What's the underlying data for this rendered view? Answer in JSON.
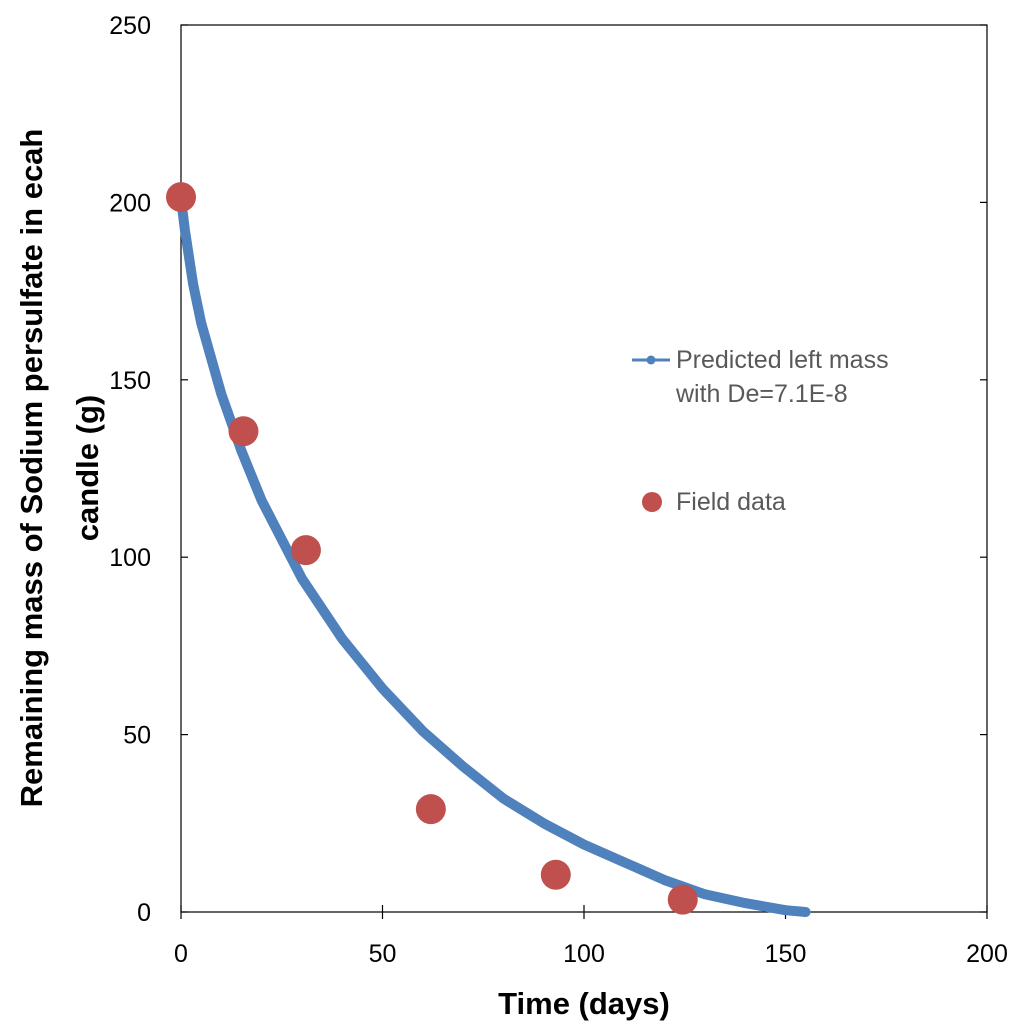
{
  "chart_data": {
    "type": "scatter",
    "xlabel": "Time (days)",
    "ylabel_lines": [
      "Remaining mass of Sodium persulfate in ecah",
      "candle (g)"
    ],
    "xlim": [
      0,
      200
    ],
    "ylim": [
      0,
      250
    ],
    "x_ticks": [
      0,
      50,
      100,
      150,
      200
    ],
    "y_ticks": [
      0,
      50,
      100,
      150,
      200,
      250
    ],
    "grid": false,
    "legend_position": "right",
    "series": [
      {
        "name_lines": [
          "Predicted left mass",
          "with De=7.1E-8"
        ],
        "kind": "line",
        "color": "#4F81BD",
        "x": [
          0,
          1,
          3,
          5,
          10,
          15,
          20,
          30,
          40,
          50,
          60,
          70,
          80,
          90,
          100,
          110,
          120,
          130,
          140,
          150,
          155
        ],
        "y": [
          201,
          192,
          177,
          166,
          146,
          130,
          116,
          94,
          77,
          63,
          51,
          41,
          32,
          25,
          19,
          14,
          9,
          5,
          2.5,
          0.5,
          0
        ]
      },
      {
        "name_lines": [
          "Field data"
        ],
        "kind": "scatter",
        "color": "#C0504D",
        "x": [
          0,
          15.5,
          31,
          62,
          93,
          124.5
        ],
        "y": [
          201.5,
          135.5,
          102,
          29,
          10.5,
          3.5
        ]
      }
    ]
  }
}
